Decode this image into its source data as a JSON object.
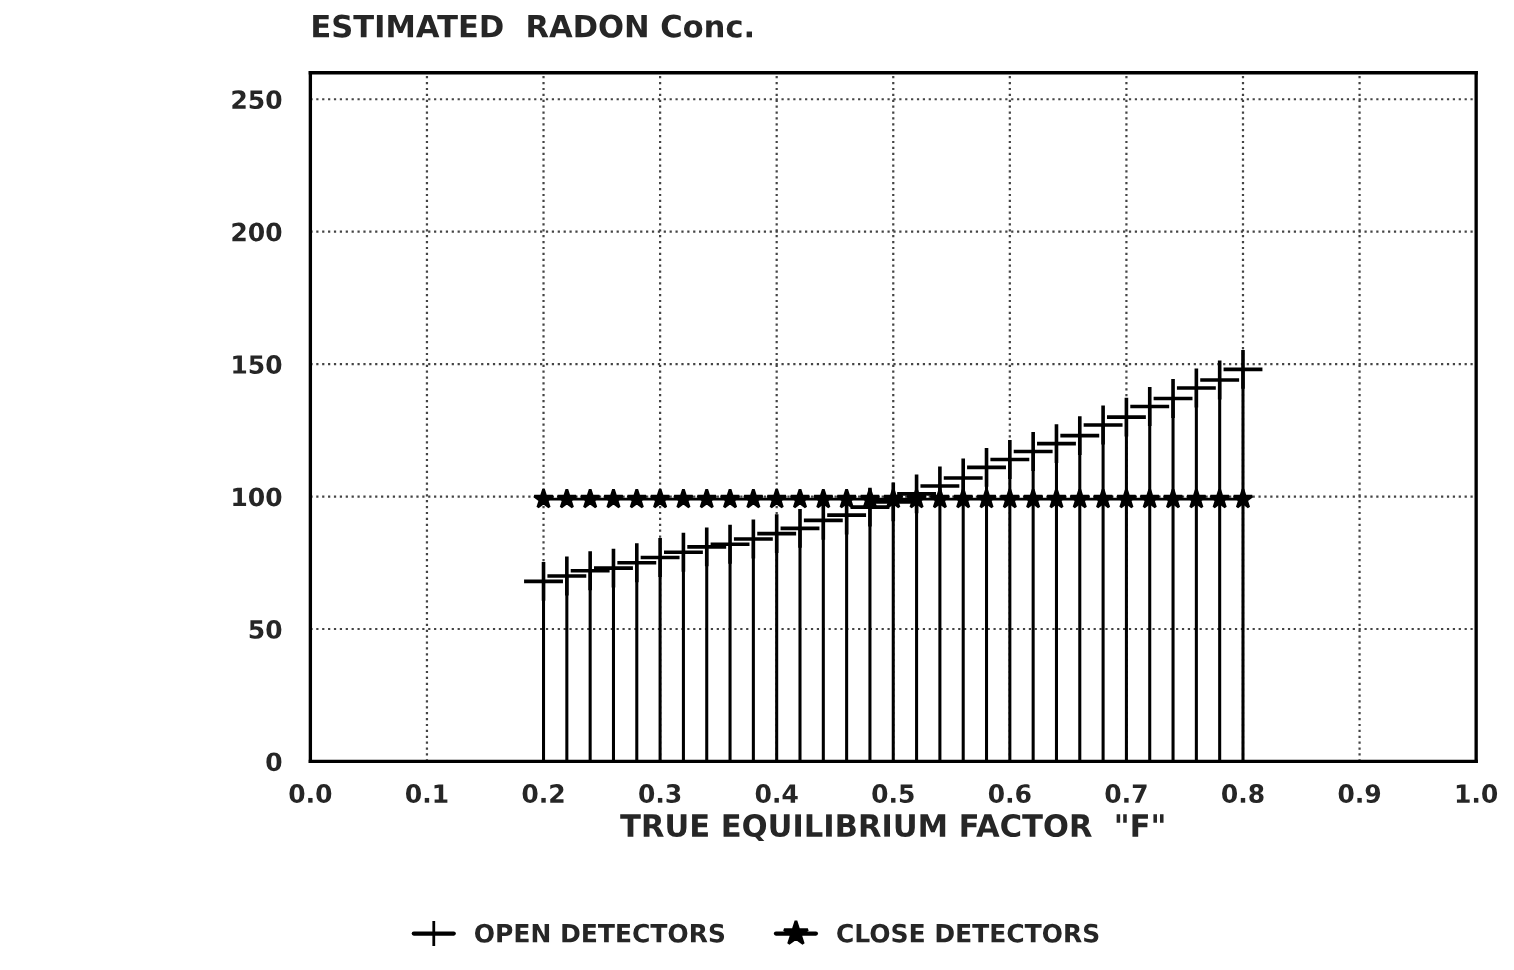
{
  "chart_data": {
    "type": "lollipop",
    "title": "ESTIMATED  RADON Conc.",
    "xlabel": "TRUE EQUILIBRIUM FACTOR  \"F\"",
    "xlim": [
      0,
      1
    ],
    "xticks": [
      {
        "value": 0,
        "label": "0.0"
      },
      0.1,
      0.2,
      0.3,
      0.4,
      0.5,
      0.6,
      0.7,
      0.8,
      0.9,
      {
        "value": 1,
        "label": "1.0"
      }
    ],
    "ylim": [
      0,
      260
    ],
    "yticks": [
      0,
      50,
      100,
      150,
      200,
      250
    ],
    "grid": true,
    "legend": "bottom",
    "series": [
      {
        "name": "OPEN DETECTORS",
        "color": "#000000",
        "marker": "cross",
        "x": [
          0.2,
          0.22,
          0.24,
          0.26,
          0.28,
          0.3,
          0.32,
          0.34,
          0.36,
          0.38,
          0.4,
          0.42,
          0.44,
          0.46,
          0.48,
          0.5,
          0.52,
          0.54,
          0.56,
          0.58,
          0.6,
          0.62,
          0.64,
          0.66,
          0.68,
          0.7,
          0.72,
          0.74,
          0.76,
          0.78,
          0.8
        ],
        "values": [
          68,
          70,
          72,
          73,
          75,
          77,
          79,
          81,
          82,
          84,
          86,
          88,
          91,
          93,
          96,
          98,
          101,
          104,
          107,
          111,
          114,
          117,
          120,
          123,
          127,
          130,
          134,
          137,
          141,
          144,
          148
        ]
      },
      {
        "name": "CLOSE DETECTORS",
        "type": "line",
        "color": "#000000",
        "marker": "star",
        "x": [
          0.2,
          0.22,
          0.24,
          0.26,
          0.28,
          0.3,
          0.32,
          0.34,
          0.36,
          0.38,
          0.4,
          0.42,
          0.44,
          0.46,
          0.48,
          0.5,
          0.52,
          0.54,
          0.56,
          0.58,
          0.6,
          0.62,
          0.64,
          0.66,
          0.68,
          0.7,
          0.72,
          0.74,
          0.76,
          0.78,
          0.8
        ],
        "values": [
          99,
          99,
          99,
          99,
          99,
          99,
          99,
          99,
          99,
          99,
          99,
          99,
          99,
          99,
          99,
          99,
          99,
          99,
          99,
          99,
          99,
          99,
          99,
          99,
          99,
          99,
          99,
          99,
          99,
          99,
          99
        ]
      }
    ]
  }
}
